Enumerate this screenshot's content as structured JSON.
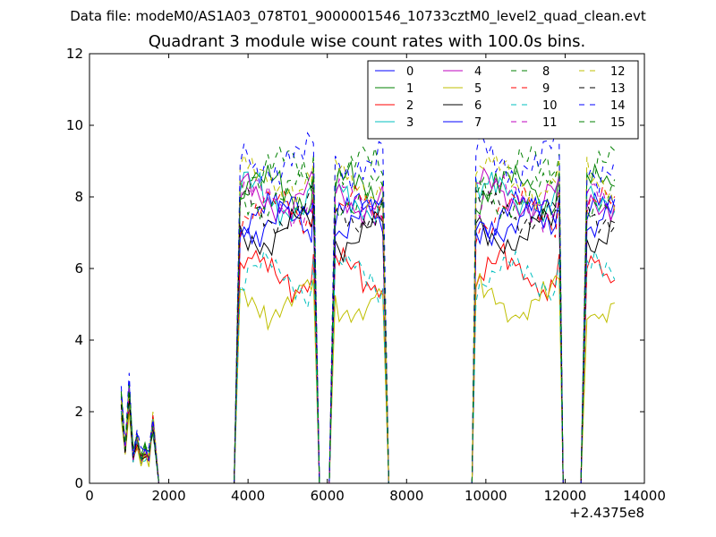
{
  "suptitle": "Data file: modeM0/AS1A03_078T01_9000001546_10733cztM0_level2_quad_clean.evt",
  "chart_data": {
    "type": "line",
    "title": "Quadrant 3 module wise count rates with 100.0s bins.",
    "xlabel": "",
    "ylabel": "",
    "x_offset_label": "+2.4375e8",
    "xlim": [
      0,
      14000
    ],
    "ylim": [
      0,
      12
    ],
    "xticks": [
      "0",
      "2000",
      "4000",
      "6000",
      "8000",
      "10000",
      "12000",
      "14000"
    ],
    "yticks": [
      "0",
      "2",
      "4",
      "6",
      "8",
      "10",
      "12"
    ],
    "grid": false,
    "legend_position": "top-right",
    "series": [
      {
        "name": "0",
        "color": "#0000ff",
        "dash": "solid",
        "level": 7.4,
        "burst": 2.9,
        "pattern": [
          0.1,
          -0.2,
          0.3,
          -0.1,
          0.2,
          -0.3,
          0.1,
          0.2,
          -0.2,
          0.0,
          0.3,
          -0.1,
          0.1,
          -0.2,
          0.2,
          0.0
        ]
      },
      {
        "name": "1",
        "color": "#008000",
        "dash": "solid",
        "level": 8.1,
        "burst": 3.0,
        "pattern": [
          0.2,
          0.0,
          -0.2,
          0.3,
          -0.1,
          0.1,
          0.4,
          -0.3,
          0.2,
          0.1,
          -0.2,
          0.3,
          0.0,
          -0.1,
          0.2,
          0.1
        ]
      },
      {
        "name": "2",
        "color": "#ff0000",
        "dash": "solid",
        "level": 5.8,
        "burst": 2.4,
        "pattern": [
          0.0,
          0.2,
          -0.1,
          0.1,
          -0.2,
          0.3,
          0.0,
          -0.1,
          0.2,
          0.4,
          -0.3,
          0.1,
          0.0,
          0.2,
          -0.1,
          0.1
        ]
      },
      {
        "name": "3",
        "color": "#00bfbf",
        "dash": "solid",
        "level": 7.9,
        "burst": 2.7,
        "pattern": [
          0.3,
          -0.1,
          0.2,
          0.5,
          -0.2,
          0.1,
          0.0,
          0.3,
          -0.3,
          0.2,
          0.1,
          -0.1,
          0.2,
          0.0,
          -0.2,
          0.3
        ]
      },
      {
        "name": "4",
        "color": "#bf00bf",
        "dash": "solid",
        "level": 8.0,
        "burst": 2.6,
        "pattern": [
          0.1,
          0.3,
          -0.2,
          0.2,
          0.0,
          -0.1,
          0.3,
          0.1,
          -0.2,
          0.2,
          0.0,
          0.1,
          -0.3,
          0.2,
          0.1,
          -0.1
        ]
      },
      {
        "name": "5",
        "color": "#bfbf00",
        "dash": "solid",
        "level": 5.1,
        "burst": 2.2,
        "pattern": [
          0.0,
          0.1,
          -0.2,
          0.2,
          0.1,
          -0.1,
          0.3,
          -0.3,
          0.0,
          0.2,
          -0.1,
          0.1,
          0.2,
          -0.2,
          0.0,
          0.1
        ]
      },
      {
        "name": "6",
        "color": "#000000",
        "dash": "solid",
        "level": 7.0,
        "burst": 2.5,
        "pattern": [
          -0.1,
          0.2,
          0.0,
          -0.2,
          0.3,
          0.1,
          -0.1,
          0.2,
          0.0,
          -0.3,
          0.2,
          0.1,
          0.0,
          -0.1,
          0.3,
          0.0
        ]
      },
      {
        "name": "7",
        "color": "#0000ff",
        "dash": "solid",
        "level": 7.3,
        "burst": 2.8,
        "pattern": [
          0.2,
          -0.2,
          0.1,
          0.0,
          0.3,
          -0.1,
          0.2,
          -0.3,
          0.1,
          0.2,
          0.0,
          -0.2,
          0.3,
          0.1,
          -0.1,
          0.2
        ]
      },
      {
        "name": "8",
        "color": "#008000",
        "dash": "dashed",
        "level": 8.6,
        "burst": 2.9,
        "pattern": [
          0.3,
          0.1,
          -0.2,
          0.4,
          0.0,
          -0.1,
          0.3,
          0.2,
          -0.3,
          0.1,
          0.4,
          -0.2,
          0.1,
          0.3,
          -0.1,
          0.2
        ]
      },
      {
        "name": "9",
        "color": "#ff0000",
        "dash": "dashed",
        "level": 7.5,
        "burst": 2.6,
        "pattern": [
          0.1,
          -0.1,
          0.2,
          0.0,
          -0.2,
          0.3,
          0.1,
          -0.1,
          0.2,
          -0.3,
          0.1,
          0.2,
          0.0,
          -0.2,
          0.1,
          0.3
        ]
      },
      {
        "name": "10",
        "color": "#00bfbf",
        "dash": "dashed",
        "level": 5.7,
        "burst": 2.5,
        "pattern": [
          -0.1,
          0.2,
          0.1,
          -0.2,
          0.3,
          0.0,
          -0.3,
          0.2,
          0.1,
          0.0,
          -0.2,
          0.3,
          0.1,
          -0.1,
          0.2,
          0.0
        ]
      },
      {
        "name": "11",
        "color": "#bf00bf",
        "dash": "dashed",
        "level": 7.8,
        "burst": 2.7,
        "pattern": [
          0.2,
          0.0,
          0.3,
          -0.2,
          0.1,
          0.2,
          -0.1,
          0.3,
          0.0,
          -0.2,
          0.2,
          0.1,
          -0.3,
          0.2,
          0.0,
          0.1
        ]
      },
      {
        "name": "12",
        "color": "#bfbf00",
        "dash": "dashed",
        "level": 8.4,
        "burst": 2.8,
        "pattern": [
          0.0,
          0.3,
          -0.1,
          0.2,
          0.4,
          -0.2,
          0.1,
          0.0,
          0.3,
          -0.1,
          0.2,
          -0.3,
          0.1,
          0.2,
          0.0,
          0.3
        ]
      },
      {
        "name": "13",
        "color": "#000000",
        "dash": "dashed",
        "level": 7.6,
        "burst": 2.6,
        "pattern": [
          0.1,
          -0.2,
          0.2,
          0.0,
          -0.1,
          0.3,
          0.0,
          0.2,
          -0.2,
          0.1,
          0.3,
          -0.1,
          0.0,
          0.2,
          -0.2,
          0.1
        ]
      },
      {
        "name": "14",
        "color": "#0000ff",
        "dash": "dashed",
        "level": 8.9,
        "burst": 3.1,
        "pattern": [
          0.3,
          0.0,
          0.4,
          -0.2,
          0.2,
          0.5,
          -0.1,
          0.3,
          0.1,
          -0.3,
          0.4,
          0.2,
          0.0,
          0.3,
          -0.2,
          0.4
        ]
      },
      {
        "name": "15",
        "color": "#008000",
        "dash": "dashed",
        "level": 8.0,
        "burst": 2.9,
        "pattern": [
          0.2,
          -0.1,
          0.1,
          0.3,
          0.0,
          -0.2,
          0.2,
          0.1,
          -0.1,
          0.3,
          0.0,
          0.1,
          -0.2,
          0.2,
          0.3,
          -0.1
        ]
      }
    ]
  }
}
